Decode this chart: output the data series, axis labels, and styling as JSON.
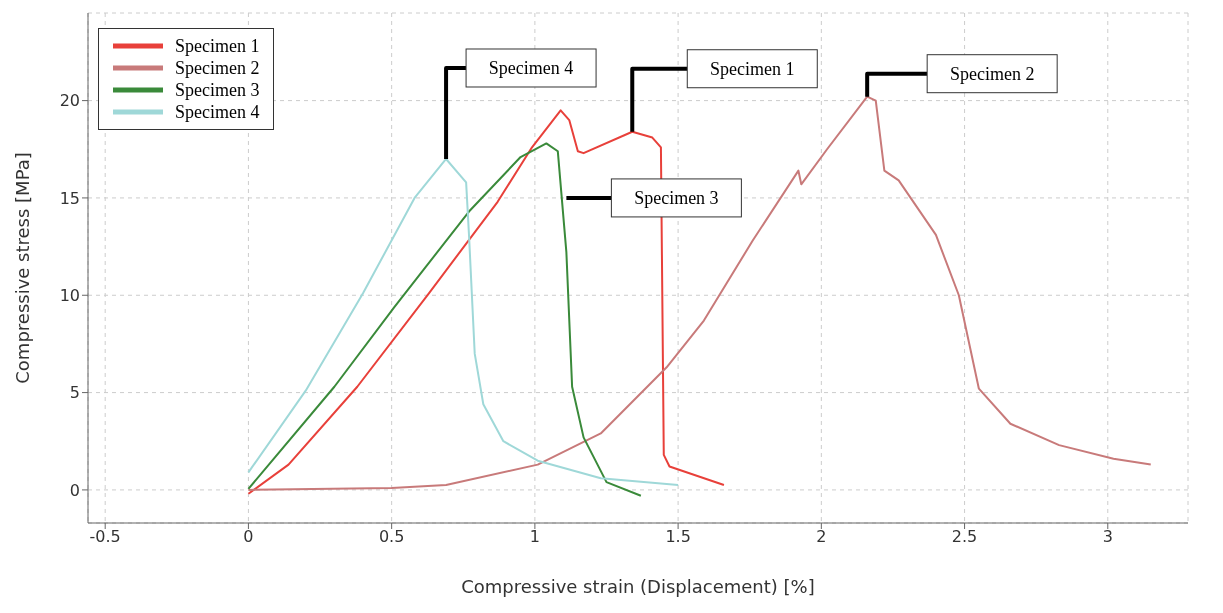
{
  "chart_data": {
    "type": "line",
    "xlabel": "Compressive strain (Displacement) [%]",
    "ylabel": "Compressive stress [MPa]",
    "xlim": [
      -0.56,
      3.28
    ],
    "ylim": [
      -1.7,
      24.5
    ],
    "xticks": [
      -0.5,
      0,
      0.5,
      1,
      1.5,
      2,
      2.5,
      3
    ],
    "yticks": [
      0,
      5,
      10,
      15,
      20
    ],
    "grid": true,
    "legend": "top left",
    "marker": "none",
    "line_style": "solid",
    "series": [
      {
        "name": "Specimen 1",
        "color": "#e8403a",
        "x": [
          0,
          0.14,
          0.38,
          0.63,
          0.87,
          0.99,
          1.09,
          1.12,
          1.15,
          1.17,
          1.34,
          1.41,
          1.44,
          1.45,
          1.47,
          1.66
        ],
        "values": [
          -0.2,
          1.3,
          5.3,
          10.1,
          14.8,
          17.6,
          19.5,
          19.0,
          17.4,
          17.3,
          18.4,
          18.1,
          17.6,
          1.8,
          1.2,
          0.25
        ]
      },
      {
        "name": "Specimen 2",
        "color": "#c87a7a",
        "x": [
          0,
          0.5,
          0.69,
          1.01,
          1.23,
          1.46,
          1.59,
          1.76,
          1.92,
          1.93,
          2.02,
          2.16,
          2.19,
          2.22,
          2.27,
          2.4,
          2.48,
          2.55,
          2.66,
          2.83,
          3.02,
          3.15
        ],
        "values": [
          0,
          0.1,
          0.25,
          1.3,
          2.9,
          6.3,
          8.7,
          12.8,
          16.4,
          15.7,
          17.5,
          20.2,
          20.0,
          16.4,
          15.9,
          13.1,
          10.0,
          5.2,
          3.4,
          2.3,
          1.6,
          1.3
        ]
      },
      {
        "name": "Specimen 3",
        "color": "#3a8a3a",
        "x": [
          0,
          0.3,
          0.51,
          0.77,
          0.95,
          1.04,
          1.08,
          1.11,
          1.13,
          1.17,
          1.25,
          1.37
        ],
        "values": [
          0.05,
          5.3,
          9.4,
          14.3,
          17.1,
          17.8,
          17.4,
          12.2,
          5.3,
          2.7,
          0.4,
          -0.3
        ]
      },
      {
        "name": "Specimen 4",
        "color": "#9fd8d8",
        "x": [
          0,
          0.2,
          0.4,
          0.58,
          0.69,
          0.76,
          0.77,
          0.79,
          0.82,
          0.89,
          1.01,
          1.23,
          1.5
        ],
        "values": [
          0.9,
          5.1,
          10.1,
          15.0,
          17.0,
          15.8,
          13.1,
          7.0,
          4.4,
          2.5,
          1.5,
          0.6,
          0.25
        ]
      }
    ],
    "annotations": [
      {
        "text": "Specimen 4",
        "x": 0.69,
        "y": 17.0
      },
      {
        "text": "Specimen 1",
        "x": 1.34,
        "y": 18.4
      },
      {
        "text": "Specimen 3",
        "x": 1.11,
        "y": 15.0
      },
      {
        "text": "Specimen 2",
        "x": 2.16,
        "y": 20.2
      }
    ]
  }
}
